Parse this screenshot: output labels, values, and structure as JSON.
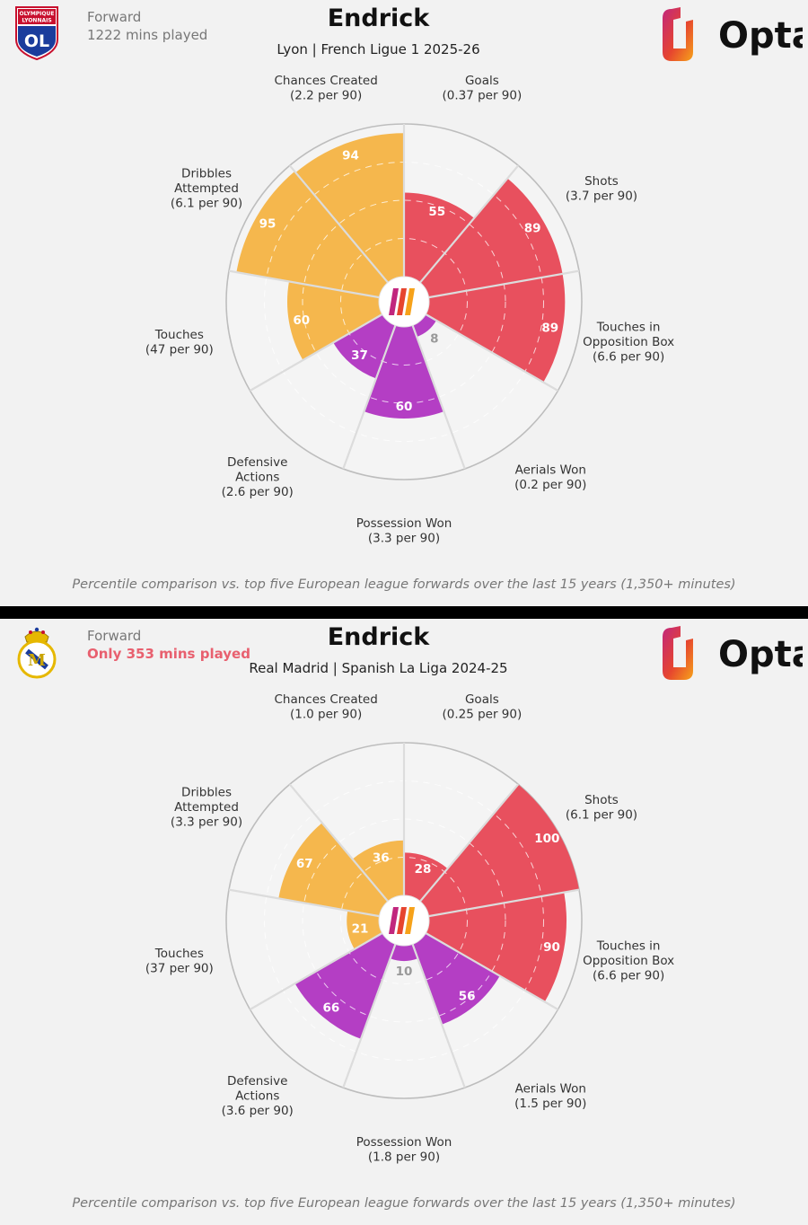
{
  "colors": {
    "attacking": "#e8505e",
    "possession": "#f5b74d",
    "defending": "#b43ec4",
    "ring": "#bdbdbd",
    "alert": "#e8606f"
  },
  "icons": {
    "lyon_badge": "olympique-lyonnais-crest-icon",
    "madrid_badge": "real-madrid-crest-icon",
    "opta": "opta-logo-icon",
    "center": "opta-analyst-center-icon"
  },
  "panels": [
    {
      "player_position": "Forward",
      "minutes_text": "1222 mins played",
      "player_name": "Endrick",
      "team_league": "Lyon | French Ligue 1 2025-26",
      "opta_logo_text": "Opta",
      "badge_text": [
        "OLYMPIQUE",
        "LYONNAIS",
        "OL"
      ],
      "footnote": "Percentile comparison vs. top five European league forwards over the last 15 years (1,350+ minutes)"
    },
    {
      "player_position": "Forward",
      "minutes_text": "Only 353 mins played",
      "player_name": "Endrick",
      "team_league": "Real Madrid | Spanish La Liga 2024-25",
      "opta_logo_text": "Opta",
      "footnote": "Percentile comparison vs. top five European league forwards over the last 15 years (1,350+ minutes)"
    }
  ],
  "chart_data": [
    {
      "type": "polar-bar",
      "title": "Endrick",
      "subtitle": "Lyon | French Ligue 1 2025-26",
      "rlim": [
        0,
        100
      ],
      "categories": [
        {
          "name": [
            "Goals"
          ],
          "per90": "(0.37 per 90)",
          "value": 55,
          "group": "attacking"
        },
        {
          "name": [
            "Shots"
          ],
          "per90": "(3.7 per 90)",
          "value": 89,
          "group": "attacking"
        },
        {
          "name": [
            "Touches in",
            "Opposition Box"
          ],
          "per90": "(6.6 per 90)",
          "value": 89,
          "group": "attacking"
        },
        {
          "name": [
            "Aerials Won"
          ],
          "per90": "(0.2 per 90)",
          "value": 8,
          "group": "defending"
        },
        {
          "name": [
            "Possession Won"
          ],
          "per90": "(3.3 per 90)",
          "value": 60,
          "group": "defending"
        },
        {
          "name": [
            "Defensive",
            "Actions"
          ],
          "per90": "(2.6 per 90)",
          "value": 37,
          "group": "defending"
        },
        {
          "name": [
            "Touches"
          ],
          "per90": "(47 per 90)",
          "value": 60,
          "group": "possession"
        },
        {
          "name": [
            "Dribbles",
            "Attempted"
          ],
          "per90": "(6.1 per 90)",
          "value": 95,
          "group": "possession"
        },
        {
          "name": [
            "Chances Created"
          ],
          "per90": "(2.2 per 90)",
          "value": 94,
          "group": "possession"
        }
      ]
    },
    {
      "type": "polar-bar",
      "title": "Endrick",
      "subtitle": "Real Madrid | Spanish La Liga 2024-25",
      "rlim": [
        0,
        100
      ],
      "categories": [
        {
          "name": [
            "Goals"
          ],
          "per90": "(0.25 per 90)",
          "value": 28,
          "group": "attacking"
        },
        {
          "name": [
            "Shots"
          ],
          "per90": "(6.1 per 90)",
          "value": 100,
          "group": "attacking"
        },
        {
          "name": [
            "Touches in",
            "Opposition Box"
          ],
          "per90": "(6.6 per 90)",
          "value": 90,
          "group": "attacking"
        },
        {
          "name": [
            "Aerials Won"
          ],
          "per90": "(1.5 per 90)",
          "value": 56,
          "group": "defending"
        },
        {
          "name": [
            "Possession Won"
          ],
          "per90": "(1.8 per 90)",
          "value": 10,
          "group": "defending"
        },
        {
          "name": [
            "Defensive",
            "Actions"
          ],
          "per90": "(3.6 per 90)",
          "value": 66,
          "group": "defending"
        },
        {
          "name": [
            "Touches"
          ],
          "per90": "(37 per 90)",
          "value": 21,
          "group": "possession"
        },
        {
          "name": [
            "Dribbles",
            "Attempted"
          ],
          "per90": "(3.3 per 90)",
          "value": 67,
          "group": "possession"
        },
        {
          "name": [
            "Chances Created"
          ],
          "per90": "(1.0 per 90)",
          "value": 36,
          "group": "possession"
        }
      ]
    }
  ]
}
